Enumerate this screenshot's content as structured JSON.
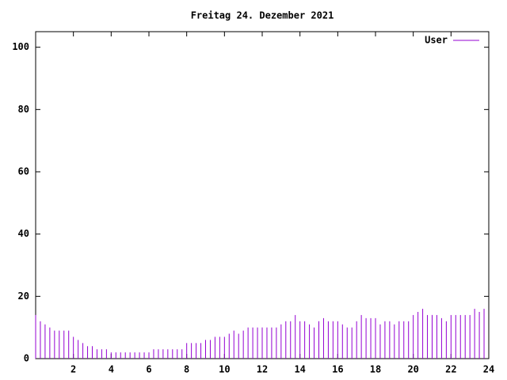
{
  "chart_data": {
    "type": "impulse",
    "title": "Freitag 24. Dezember 2021",
    "x": [
      0,
      0.25,
      0.5,
      0.75,
      1,
      1.25,
      1.5,
      1.75,
      2,
      2.25,
      2.5,
      2.75,
      3,
      3.25,
      3.5,
      3.75,
      4,
      4.25,
      4.5,
      4.75,
      5,
      5.25,
      5.5,
      5.75,
      6,
      6.25,
      6.5,
      6.75,
      7,
      7.25,
      7.5,
      7.75,
      8,
      8.25,
      8.5,
      8.75,
      9,
      9.25,
      9.5,
      9.75,
      10,
      10.25,
      10.5,
      10.75,
      11,
      11.25,
      11.5,
      11.75,
      12,
      12.25,
      12.5,
      12.75,
      13,
      13.25,
      13.5,
      13.75,
      14,
      14.25,
      14.5,
      14.75,
      15,
      15.25,
      15.5,
      15.75,
      16,
      16.25,
      16.5,
      16.75,
      17,
      17.25,
      17.5,
      17.75,
      18,
      18.25,
      18.5,
      18.75,
      19,
      19.25,
      19.5,
      19.75,
      20,
      20.25,
      20.5,
      20.75,
      21,
      21.25,
      21.5,
      21.75,
      22,
      22.25,
      22.5,
      22.75,
      23,
      23.25,
      23.5,
      23.75
    ],
    "series": [
      {
        "name": "User",
        "color": "#9400d3",
        "values": [
          14,
          12,
          11,
          10,
          9,
          9,
          9,
          9,
          7,
          6,
          5,
          4,
          4,
          3,
          3,
          3,
          2,
          2,
          2,
          2,
          2,
          2,
          2,
          2,
          2,
          3,
          3,
          3,
          3,
          3,
          3,
          3,
          5,
          5,
          5,
          5,
          6,
          6,
          7,
          7,
          7,
          8,
          9,
          8,
          9,
          10,
          10,
          10,
          10,
          10,
          10,
          10,
          11,
          12,
          12,
          14,
          12,
          12,
          11,
          10,
          12,
          13,
          12,
          12,
          12,
          11,
          10,
          10,
          12,
          14,
          13,
          13,
          13,
          11,
          12,
          12,
          11,
          12,
          12,
          12,
          14,
          15,
          16,
          14,
          14,
          14,
          13,
          12,
          14,
          14,
          14,
          14,
          14,
          16,
          15,
          16
        ]
      }
    ],
    "xlim": [
      0,
      24
    ],
    "xticks": [
      2,
      4,
      6,
      8,
      10,
      12,
      14,
      16,
      18,
      20,
      22,
      24
    ],
    "ylim": [
      0,
      105
    ],
    "yticks": [
      0,
      20,
      40,
      60,
      80,
      100
    ],
    "legend": "top-right"
  }
}
